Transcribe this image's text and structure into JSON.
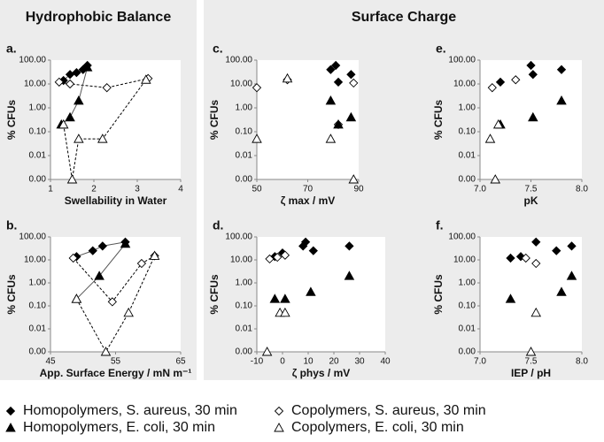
{
  "groups": [
    {
      "title": "Hydrophobic Balance"
    },
    {
      "title": "Surface Charge"
    }
  ],
  "legend": [
    {
      "name": "Homopolymers, S. aureus, 30 min",
      "marker": "diamond-filled"
    },
    {
      "name": "Copolymers, S. aureus, 30 min",
      "marker": "diamond-open"
    },
    {
      "name": "Homopolymers, E. coli, 30 min",
      "marker": "triangle-filled"
    },
    {
      "name": "Copolymers, E. coli, 30 min",
      "marker": "triangle-open"
    }
  ],
  "chart_data": [
    {
      "type": "scatter",
      "label": "a.",
      "xlabel": "Swellability in Water",
      "ylabel": "% CFUs",
      "log_y": true,
      "xlim": [
        1,
        4
      ],
      "xticks": [
        1,
        2,
        3,
        4
      ],
      "ylim": [
        0.001,
        100
      ],
      "yticks": [
        {
          "value": 0.001,
          "label": "0.00"
        },
        {
          "value": 0.01,
          "label": "0.01"
        },
        {
          "value": 0.1,
          "label": "0.10"
        },
        {
          "value": 1,
          "label": "1.00"
        },
        {
          "value": 10,
          "label": "10.00"
        },
        {
          "value": 100,
          "label": "100.00"
        }
      ],
      "connect": true,
      "series": [
        {
          "marker": "diamond-filled",
          "x": [
            1.3,
            1.45,
            1.6,
            1.75,
            1.85
          ],
          "values": [
            14,
            25,
            30,
            40,
            60
          ]
        },
        {
          "marker": "diamond-open",
          "x": [
            1.2,
            1.45,
            2.3,
            3.25
          ],
          "values": [
            12,
            10,
            7,
            17
          ]
        },
        {
          "marker": "triangle-filled",
          "x": [
            1.25,
            1.45,
            1.65,
            1.85
          ],
          "values": [
            0.2,
            0.4,
            2,
            50
          ]
        },
        {
          "marker": "triangle-open",
          "x": [
            1.3,
            1.5,
            1.65,
            2.2,
            3.2
          ],
          "values": [
            0.2,
            0.001,
            0.05,
            0.05,
            15
          ]
        }
      ]
    },
    {
      "type": "scatter",
      "label": "b.",
      "xlabel": "App. Surface Energy / mN m⁻¹",
      "ylabel": "% CFUs",
      "log_y": true,
      "xlim": [
        45,
        65
      ],
      "xticks": [
        45,
        55,
        65
      ],
      "ylim": [
        0.001,
        100
      ],
      "yticks": [
        {
          "value": 0.001,
          "label": "0.00"
        },
        {
          "value": 0.01,
          "label": "0.01"
        },
        {
          "value": 0.1,
          "label": "0.10"
        },
        {
          "value": 1,
          "label": "1.00"
        },
        {
          "value": 10,
          "label": "10.00"
        },
        {
          "value": 100,
          "label": "100.00"
        }
      ],
      "connect": true,
      "series": [
        {
          "marker": "diamond-filled",
          "x": [
            49,
            51.5,
            53,
            56.5
          ],
          "values": [
            14,
            25,
            40,
            60
          ]
        },
        {
          "marker": "diamond-open",
          "x": [
            48.5,
            54.5,
            59,
            61
          ],
          "values": [
            12,
            0.15,
            7,
            15
          ]
        },
        {
          "marker": "triangle-filled",
          "x": [
            49,
            52.5,
            56.5
          ],
          "values": [
            0.2,
            2,
            50
          ]
        },
        {
          "marker": "triangle-open",
          "x": [
            49,
            53.5,
            57,
            61
          ],
          "values": [
            0.2,
            0.001,
            0.05,
            15
          ]
        }
      ]
    },
    {
      "type": "scatter",
      "label": "c.",
      "xlabel": "ζ max / mV",
      "ylabel": "% CFUs",
      "log_y": true,
      "xlim": [
        50,
        90
      ],
      "xticks": [
        50,
        70,
        90
      ],
      "ylim": [
        0.001,
        100
      ],
      "yticks": [
        {
          "value": 0.001,
          "label": "0.00"
        },
        {
          "value": 0.01,
          "label": "0.01"
        },
        {
          "value": 0.1,
          "label": "0.10"
        },
        {
          "value": 1,
          "label": "1.00"
        },
        {
          "value": 10,
          "label": "10.00"
        },
        {
          "value": 100,
          "label": "100.00"
        }
      ],
      "connect": false,
      "series": [
        {
          "marker": "diamond-filled",
          "x": [
            79,
            81,
            82,
            87
          ],
          "values": [
            40,
            60,
            12,
            25
          ]
        },
        {
          "marker": "diamond-open",
          "x": [
            50,
            62,
            88,
            82
          ],
          "values": [
            7,
            15,
            11,
            0.2
          ]
        },
        {
          "marker": "triangle-filled",
          "x": [
            79,
            82,
            87
          ],
          "values": [
            2,
            0.2,
            0.4
          ]
        },
        {
          "marker": "triangle-open",
          "x": [
            50,
            62,
            79,
            88
          ],
          "values": [
            0.05,
            17,
            0.05,
            0.001
          ]
        }
      ]
    },
    {
      "type": "scatter",
      "label": "d.",
      "xlabel": "ζ phys / mV",
      "ylabel": "% CFUs",
      "log_y": true,
      "xlim": [
        -10,
        40
      ],
      "xticks": [
        -10,
        0,
        10,
        20,
        30,
        40
      ],
      "ylim": [
        0.001,
        100
      ],
      "yticks": [
        {
          "value": 0.001,
          "label": "0.00"
        },
        {
          "value": 0.01,
          "label": "0.01"
        },
        {
          "value": 0.1,
          "label": "0.10"
        },
        {
          "value": 1,
          "label": "1.00"
        },
        {
          "value": 10,
          "label": "10.00"
        },
        {
          "value": 100,
          "label": "100.00"
        }
      ],
      "connect": false,
      "series": [
        {
          "marker": "diamond-filled",
          "x": [
            -3,
            0,
            8,
            9,
            12,
            26
          ],
          "values": [
            14,
            20,
            40,
            60,
            25,
            40
          ]
        },
        {
          "marker": "diamond-open",
          "x": [
            -5,
            -2,
            1
          ],
          "values": [
            11,
            13,
            16
          ]
        },
        {
          "marker": "triangle-filled",
          "x": [
            -3,
            1,
            11,
            26
          ],
          "values": [
            0.2,
            0.2,
            0.4,
            2
          ]
        },
        {
          "marker": "triangle-open",
          "x": [
            -6,
            -1,
            1
          ],
          "values": [
            0.001,
            0.05,
            0.05
          ]
        }
      ]
    },
    {
      "type": "scatter",
      "label": "e.",
      "xlabel": "pK",
      "ylabel": "% CFUs",
      "log_y": true,
      "xlim": [
        7,
        8
      ],
      "xticks": [
        {
          "value": 7,
          "label": "7.0"
        },
        {
          "value": 7.5,
          "label": "7.5"
        },
        {
          "value": 8,
          "label": "8.0"
        }
      ],
      "ylim": [
        0.001,
        100
      ],
      "yticks": [
        {
          "value": 0.001,
          "label": "0.00"
        },
        {
          "value": 0.01,
          "label": "0.01"
        },
        {
          "value": 0.1,
          "label": "0.10"
        },
        {
          "value": 1,
          "label": "1.00"
        },
        {
          "value": 10,
          "label": "10.00"
        },
        {
          "value": 100,
          "label": "100.00"
        }
      ],
      "connect": false,
      "series": [
        {
          "marker": "diamond-filled",
          "x": [
            7.2,
            7.5,
            7.52,
            7.8
          ],
          "values": [
            12,
            60,
            25,
            40
          ]
        },
        {
          "marker": "diamond-open",
          "x": [
            7.12,
            7.35
          ],
          "values": [
            7,
            15
          ]
        },
        {
          "marker": "triangle-filled",
          "x": [
            7.2,
            7.52,
            7.8
          ],
          "values": [
            0.2,
            0.4,
            2
          ]
        },
        {
          "marker": "triangle-open",
          "x": [
            7.1,
            7.15,
            7.18
          ],
          "values": [
            0.05,
            0.001,
            0.2
          ]
        }
      ]
    },
    {
      "type": "scatter",
      "label": "f.",
      "xlabel": "IEP / pH",
      "ylabel": "% CFUs",
      "log_y": true,
      "xlim": [
        7,
        8
      ],
      "xticks": [
        {
          "value": 7,
          "label": "7.0"
        },
        {
          "value": 7.5,
          "label": "7.5"
        },
        {
          "value": 8,
          "label": "8.0"
        }
      ],
      "ylim": [
        0.001,
        100
      ],
      "yticks": [
        {
          "value": 0.001,
          "label": "0.00"
        },
        {
          "value": 0.01,
          "label": "0.01"
        },
        {
          "value": 0.1,
          "label": "0.10"
        },
        {
          "value": 1,
          "label": "1.00"
        },
        {
          "value": 10,
          "label": "10.00"
        },
        {
          "value": 100,
          "label": "100.00"
        }
      ],
      "connect": false,
      "series": [
        {
          "marker": "diamond-filled",
          "x": [
            7.3,
            7.4,
            7.55,
            7.75,
            7.9
          ],
          "values": [
            12,
            14,
            60,
            25,
            40
          ]
        },
        {
          "marker": "diamond-open",
          "x": [
            7.45,
            7.55
          ],
          "values": [
            12,
            7
          ]
        },
        {
          "marker": "triangle-filled",
          "x": [
            7.3,
            7.8,
            7.9
          ],
          "values": [
            0.2,
            0.4,
            2
          ]
        },
        {
          "marker": "triangle-open",
          "x": [
            7.55,
            7.5
          ],
          "values": [
            0.05,
            0.001
          ]
        }
      ]
    }
  ]
}
